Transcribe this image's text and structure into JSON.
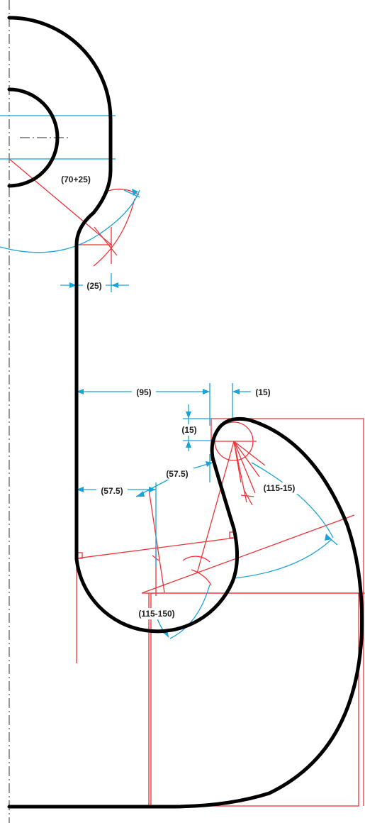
{
  "colors": {
    "outline": "#000000",
    "construction": "#ee3338",
    "dimension": "#1aa3d6",
    "centerline": "#555555"
  },
  "dimensions": {
    "eye_outer_radius": "(70+25)",
    "neck_fillet": "(25)",
    "shank_to_tip_center": "(95)",
    "tip_radius_h": "(15)",
    "tip_radius_v": "(15)",
    "inner_arc_left": "(57.5)",
    "inner_arc_right": "(57.5)",
    "outer_arc": "(115-15)",
    "lower_arc": "(115-150)"
  }
}
